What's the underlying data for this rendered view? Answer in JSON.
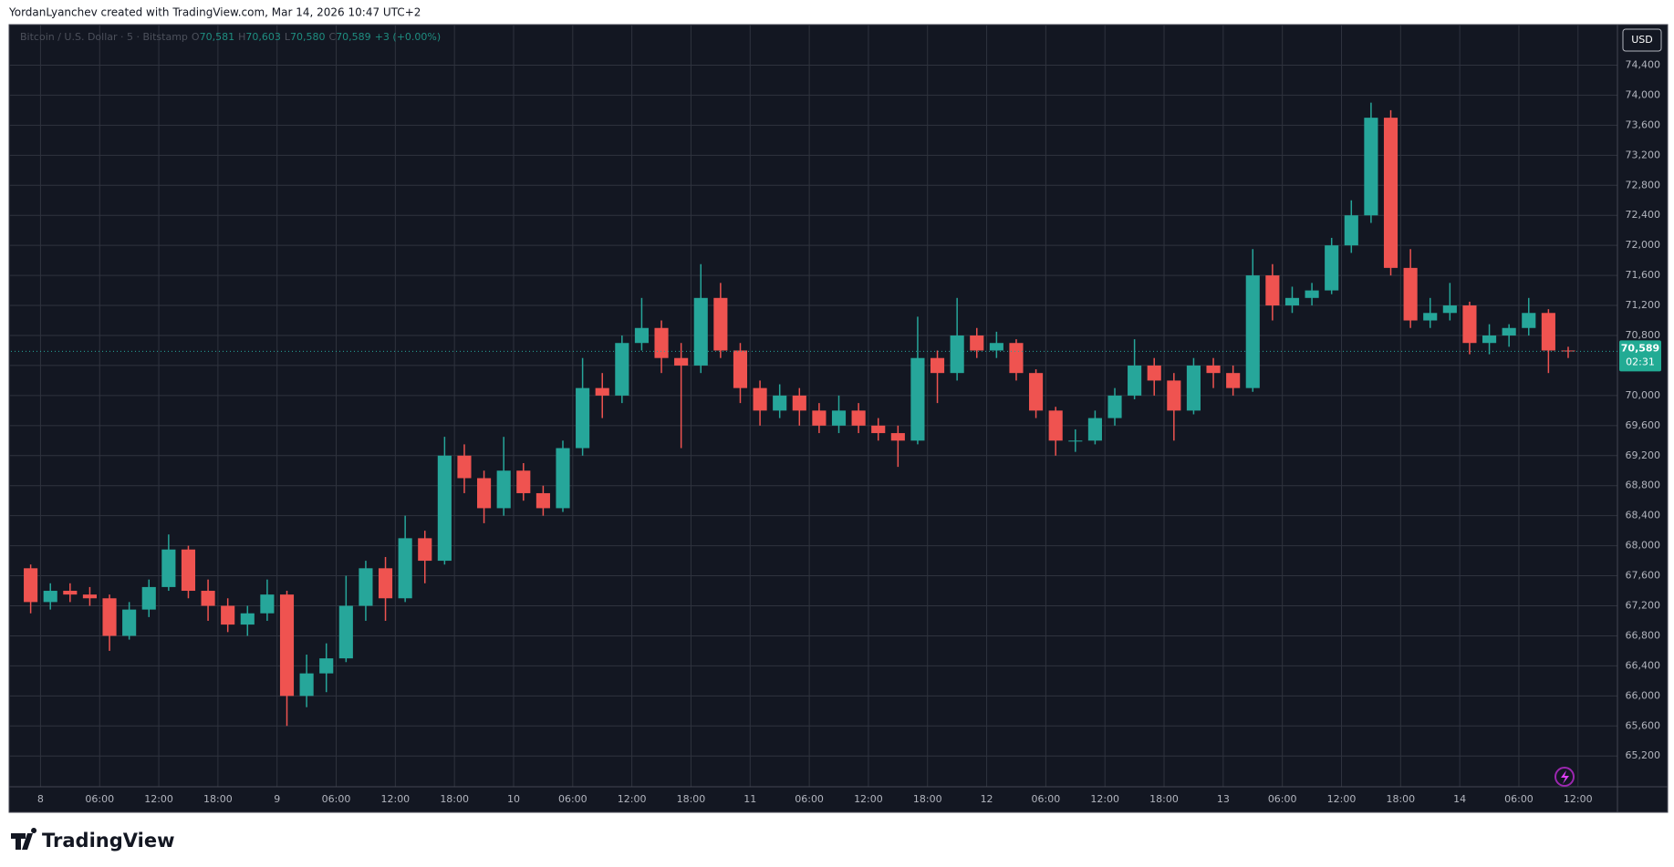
{
  "header": {
    "text": "YordanLyanchev created with TradingView.com, Mar 14, 2026 10:47 UTC+2"
  },
  "footer": {
    "logo": "TradingView"
  },
  "chart_data": {
    "type": "candlestick",
    "legend": {
      "symbol": "Bitcoin / U.S. Dollar · 5 · Bitstamp",
      "values": [
        {
          "label": "O",
          "value": "70,581"
        },
        {
          "label": "H",
          "value": "70,603"
        },
        {
          "label": "L",
          "value": "70,580"
        },
        {
          "label": "C",
          "value": "70,589"
        }
      ],
      "change": "+3 (+0.00%)"
    },
    "currency": "USD",
    "up_color": "#26a69a",
    "down_color": "#ef5350",
    "grid": true,
    "last_price": {
      "value": 70589,
      "label": "70,589",
      "countdown": "02:31"
    },
    "x": [
      "7 22:00",
      "8 00:00",
      "8 02:00",
      "8 04:00",
      "8 06:00",
      "8 08:00",
      "8 10:00",
      "8 12:00",
      "8 14:00",
      "8 16:00",
      "8 18:00",
      "8 20:00",
      "8 22:00",
      "9 00:00",
      "9 02:00",
      "9 04:00",
      "9 06:00",
      "9 08:00",
      "9 10:00",
      "9 12:00",
      "9 14:00",
      "9 16:00",
      "9 18:00",
      "9 20:00",
      "9 22:00",
      "10 00:00",
      "10 02:00",
      "10 04:00",
      "10 06:00",
      "10 08:00",
      "10 10:00",
      "10 12:00",
      "10 14:00",
      "10 16:00",
      "10 18:00",
      "10 20:00",
      "10 22:00",
      "11 00:00",
      "11 02:00",
      "11 04:00",
      "11 06:00",
      "11 08:00",
      "11 10:00",
      "11 12:00",
      "11 14:00",
      "11 16:00",
      "11 18:00",
      "11 20:00",
      "11 22:00",
      "12 00:00",
      "12 02:00",
      "12 04:00",
      "12 06:00",
      "12 08:00",
      "12 10:00",
      "12 12:00",
      "12 14:00",
      "12 16:00",
      "12 18:00",
      "12 20:00",
      "12 22:00",
      "13 00:00",
      "13 02:00",
      "13 04:00",
      "13 06:00",
      "13 08:00",
      "13 10:00",
      "13 12:00",
      "13 14:00",
      "13 16:00",
      "13 18:00",
      "13 20:00",
      "13 22:00",
      "14 00:00",
      "14 02:00",
      "14 04:00",
      "14 06:00",
      "14 08:00",
      "14 10:00"
    ],
    "candles": [
      [
        67700,
        67750,
        67100,
        67250
      ],
      [
        67250,
        67500,
        67150,
        67400
      ],
      [
        67400,
        67500,
        67250,
        67350
      ],
      [
        67350,
        67450,
        67200,
        67300
      ],
      [
        67300,
        67350,
        66600,
        66800
      ],
      [
        66800,
        67250,
        66750,
        67150
      ],
      [
        67150,
        67550,
        67050,
        67450
      ],
      [
        67450,
        68150,
        67400,
        67950
      ],
      [
        67950,
        68000,
        67300,
        67400
      ],
      [
        67400,
        67550,
        67000,
        67200
      ],
      [
        67200,
        67300,
        66850,
        66950
      ],
      [
        66950,
        67200,
        66800,
        67100
      ],
      [
        67100,
        67550,
        67000,
        67350
      ],
      [
        67350,
        67400,
        65600,
        66000
      ],
      [
        66000,
        66550,
        65850,
        66300
      ],
      [
        66300,
        66700,
        66050,
        66500
      ],
      [
        66500,
        67600,
        66450,
        67200
      ],
      [
        67200,
        67800,
        67000,
        67700
      ],
      [
        67700,
        67850,
        67000,
        67300
      ],
      [
        67300,
        68400,
        67250,
        68100
      ],
      [
        68100,
        68200,
        67500,
        67800
      ],
      [
        67800,
        69450,
        67750,
        69200
      ],
      [
        69200,
        69350,
        68700,
        68900
      ],
      [
        68900,
        69000,
        68300,
        68500
      ],
      [
        68500,
        69450,
        68400,
        69000
      ],
      [
        69000,
        69100,
        68600,
        68700
      ],
      [
        68700,
        68800,
        68400,
        68500
      ],
      [
        68500,
        69400,
        68450,
        69300
      ],
      [
        69300,
        70500,
        69200,
        70100
      ],
      [
        70100,
        70300,
        69700,
        70000
      ],
      [
        70000,
        70800,
        69900,
        70700
      ],
      [
        70700,
        71300,
        70600,
        70900
      ],
      [
        70900,
        71000,
        70300,
        70500
      ],
      [
        70500,
        70700,
        69300,
        70400
      ],
      [
        70400,
        71750,
        70300,
        71300
      ],
      [
        71300,
        71500,
        70500,
        70600
      ],
      [
        70600,
        70700,
        69900,
        70100
      ],
      [
        70100,
        70200,
        69600,
        69800
      ],
      [
        69800,
        70150,
        69700,
        70000
      ],
      [
        70000,
        70100,
        69600,
        69800
      ],
      [
        69800,
        69900,
        69500,
        69600
      ],
      [
        69600,
        70000,
        69500,
        69800
      ],
      [
        69800,
        69900,
        69500,
        69600
      ],
      [
        69600,
        69700,
        69400,
        69500
      ],
      [
        69500,
        69600,
        69050,
        69400
      ],
      [
        69400,
        71050,
        69350,
        70500
      ],
      [
        70500,
        70600,
        69900,
        70300
      ],
      [
        70300,
        71300,
        70200,
        70800
      ],
      [
        70800,
        70900,
        70500,
        70600
      ],
      [
        70600,
        70850,
        70500,
        70700
      ],
      [
        70700,
        70750,
        70200,
        70300
      ],
      [
        70300,
        70350,
        69700,
        69800
      ],
      [
        69800,
        69850,
        69200,
        69400
      ],
      [
        69400,
        69550,
        69250,
        69400
      ],
      [
        69400,
        69800,
        69350,
        69700
      ],
      [
        69700,
        70100,
        69600,
        70000
      ],
      [
        70000,
        70750,
        69950,
        70400
      ],
      [
        70400,
        70500,
        70000,
        70200
      ],
      [
        70200,
        70300,
        69400,
        69800
      ],
      [
        69800,
        70500,
        69750,
        70400
      ],
      [
        70400,
        70500,
        70100,
        70300
      ],
      [
        70300,
        70400,
        70000,
        70100
      ],
      [
        70100,
        71950,
        70050,
        71600
      ],
      [
        71600,
        71750,
        71000,
        71200
      ],
      [
        71200,
        71450,
        71100,
        71300
      ],
      [
        71300,
        71500,
        71200,
        71400
      ],
      [
        71400,
        72100,
        71350,
        72000
      ],
      [
        72000,
        72600,
        71900,
        72400
      ],
      [
        72400,
        73900,
        72300,
        73700
      ],
      [
        73700,
        73800,
        71600,
        71700
      ],
      [
        71700,
        71950,
        70900,
        71000
      ],
      [
        71000,
        71300,
        70900,
        71100
      ],
      [
        71100,
        71500,
        71000,
        71200
      ],
      [
        71200,
        71250,
        70550,
        70700
      ],
      [
        70700,
        70950,
        70550,
        70800
      ],
      [
        70800,
        70950,
        70650,
        70900
      ],
      [
        70900,
        71300,
        70800,
        71100
      ],
      [
        71100,
        71150,
        70300,
        70600
      ],
      [
        70600,
        70650,
        70500,
        70589
      ]
    ],
    "xlim": [
      "7 21:00",
      "14 16:00"
    ],
    "xticks": [
      {
        "value": "8 00:00",
        "label": "8"
      },
      {
        "value": "8 06:00",
        "label": "06:00"
      },
      {
        "value": "8 12:00",
        "label": "12:00"
      },
      {
        "value": "8 18:00",
        "label": "18:00"
      },
      {
        "value": "9 00:00",
        "label": "9"
      },
      {
        "value": "9 06:00",
        "label": "06:00"
      },
      {
        "value": "9 12:00",
        "label": "12:00"
      },
      {
        "value": "9 18:00",
        "label": "18:00"
      },
      {
        "value": "10 00:00",
        "label": "10"
      },
      {
        "value": "10 06:00",
        "label": "06:00"
      },
      {
        "value": "10 12:00",
        "label": "12:00"
      },
      {
        "value": "10 18:00",
        "label": "18:00"
      },
      {
        "value": "11 00:00",
        "label": "11"
      },
      {
        "value": "11 06:00",
        "label": "06:00"
      },
      {
        "value": "11 12:00",
        "label": "12:00"
      },
      {
        "value": "11 18:00",
        "label": "18:00"
      },
      {
        "value": "12 00:00",
        "label": "12"
      },
      {
        "value": "12 06:00",
        "label": "06:00"
      },
      {
        "value": "12 12:00",
        "label": "12:00"
      },
      {
        "value": "12 18:00",
        "label": "18:00"
      },
      {
        "value": "13 00:00",
        "label": "13"
      },
      {
        "value": "13 06:00",
        "label": "06:00"
      },
      {
        "value": "13 12:00",
        "label": "12:00"
      },
      {
        "value": "13 18:00",
        "label": "18:00"
      },
      {
        "value": "14 00:00",
        "label": "14"
      },
      {
        "value": "14 06:00",
        "label": "06:00"
      },
      {
        "value": "14 12:00",
        "label": "12:00"
      }
    ],
    "ylim": [
      64790,
      74940
    ],
    "yticks": [
      {
        "value": 65200,
        "label": "65,200"
      },
      {
        "value": 65600,
        "label": "65,600"
      },
      {
        "value": 66000,
        "label": "66,000"
      },
      {
        "value": 66400,
        "label": "66,400"
      },
      {
        "value": 66800,
        "label": "66,800"
      },
      {
        "value": 67200,
        "label": "67,200"
      },
      {
        "value": 67600,
        "label": "67,600"
      },
      {
        "value": 68000,
        "label": "68,000"
      },
      {
        "value": 68400,
        "label": "68,400"
      },
      {
        "value": 68800,
        "label": "68,800"
      },
      {
        "value": 69200,
        "label": "69,200"
      },
      {
        "value": 69600,
        "label": "69,600"
      },
      {
        "value": 70000,
        "label": "70,000"
      },
      {
        "value": 70400,
        "label": "70,400"
      },
      {
        "value": 70800,
        "label": "70,800"
      },
      {
        "value": 71200,
        "label": "71,200"
      },
      {
        "value": 71600,
        "label": "71,600"
      },
      {
        "value": 72000,
        "label": "72,000"
      },
      {
        "value": 72400,
        "label": "72,400"
      },
      {
        "value": 72800,
        "label": "72,800"
      },
      {
        "value": 73200,
        "label": "73,200"
      },
      {
        "value": 73600,
        "label": "73,600"
      },
      {
        "value": 74000,
        "label": "74,000"
      },
      {
        "value": 74400,
        "label": "74,400"
      }
    ]
  }
}
